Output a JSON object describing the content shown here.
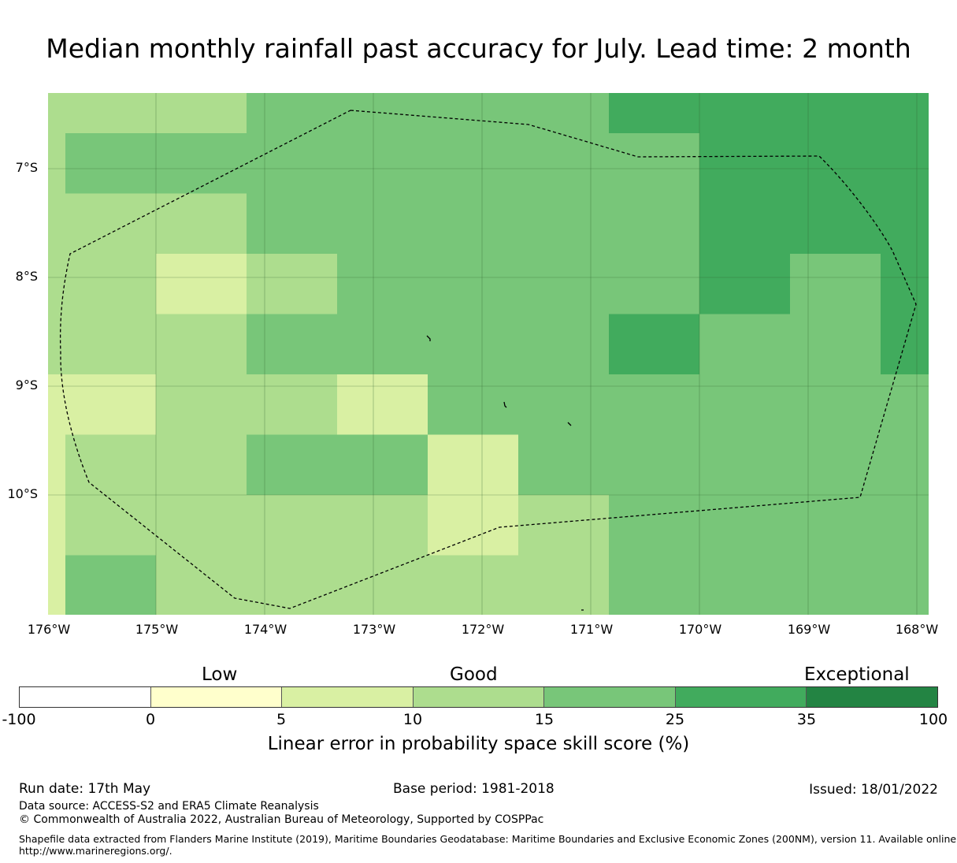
{
  "title": "Median monthly rainfall past accuracy for July. Lead time: 2 month",
  "map": {
    "lat_labels": [
      "7°S",
      "8°S",
      "9°S",
      "10°S"
    ],
    "lon_labels": [
      "176°W",
      "175°W",
      "174°W",
      "173°W",
      "172°W",
      "171°W",
      "170°W",
      "169°W",
      "168°W"
    ],
    "categories": [
      "0",
      "5",
      "10",
      "15",
      "25",
      "35"
    ],
    "colors": [
      "#ffffcc",
      "#d9f0a3",
      "#addd8e",
      "#78c679",
      "#41ab5d",
      "#238443"
    ],
    "cells": [
      [
        "10",
        "10",
        "15",
        "15",
        "15",
        "15",
        "25",
        "25",
        "25",
        "25"
      ],
      [
        "10",
        "15",
        "15",
        "15",
        "15",
        "15",
        "15",
        "25",
        "25",
        "25"
      ],
      [
        "10",
        "15",
        "15",
        "15",
        "15",
        "15",
        "15",
        "25",
        "25",
        "25"
      ],
      [
        "10",
        "10",
        "15",
        "15",
        "15",
        "15",
        "15",
        "25",
        "25",
        "25"
      ],
      [
        "10",
        "10",
        "15",
        "15",
        "15",
        "15",
        "15",
        "25",
        "25",
        "25"
      ],
      [
        "10",
        "10",
        "10",
        "15",
        "15",
        "15",
        "15",
        "25",
        "25",
        "25"
      ],
      [
        "10",
        "10",
        "10",
        "15",
        "15",
        "15",
        "15",
        "25",
        "25",
        "25"
      ],
      [
        "10",
        "10",
        "5",
        "10",
        "15",
        "15",
        "15",
        "25",
        "25",
        "15"
      ],
      [
        "10",
        "10",
        "5",
        "10",
        "15",
        "15",
        "15",
        "25",
        "25",
        "15"
      ],
      [
        "10",
        "10",
        "15",
        "15",
        "15",
        "15",
        "25",
        "15",
        "15",
        "25"
      ],
      [
        "10",
        "10",
        "15",
        "15",
        "15",
        "15",
        "25",
        "15",
        "15",
        "25"
      ],
      [
        "5",
        "5",
        "10",
        "10",
        "5",
        "15",
        "15",
        "15",
        "15",
        "15"
      ],
      [
        "5",
        "5",
        "10",
        "10",
        "5",
        "15",
        "15",
        "15",
        "15",
        "15"
      ],
      [
        "5",
        "10",
        "10",
        "15",
        "15",
        "5",
        "15",
        "15",
        "15",
        "15"
      ],
      [
        "5",
        "10",
        "10",
        "15",
        "15",
        "5",
        "15",
        "15",
        "15",
        "15"
      ],
      [
        "5",
        "10",
        "10",
        "10",
        "10",
        "5",
        "10",
        "15",
        "15",
        "15"
      ],
      [
        "5",
        "10",
        "10",
        "10",
        "10",
        "5",
        "10",
        "15",
        "15",
        "15"
      ],
      [
        "5",
        "15",
        "10",
        "10",
        "10",
        "10",
        "10",
        "15",
        "15",
        "15"
      ],
      [
        "5",
        "15",
        "10",
        "10",
        "10",
        "10",
        "10",
        "15",
        "15",
        "15"
      ]
    ]
  },
  "colorbar": {
    "category_labels": {
      "low": "Low",
      "good": "Good",
      "exceptional": "Exceptional"
    },
    "ticks": [
      "-100",
      "0",
      "5",
      "10",
      "15",
      "25",
      "35",
      "100"
    ],
    "colors": [
      "#ffffff",
      "#ffffcc",
      "#d9f0a3",
      "#addd8e",
      "#78c679",
      "#41ab5d",
      "#238443"
    ],
    "label": "Linear error in probability space skill score (%)"
  },
  "footer": {
    "run_date": "Run date: 17th May",
    "base_period": "Base period: 1981-2018",
    "issued": "Issued: 18/01/2022",
    "data_source": "Data source: ACCESS-S2 and ERA5 Climate Reanalysis",
    "copyright": "© Commonwealth of Australia 2022, Australian Bureau of Meteorology, Supported by COSPPac",
    "shapefile_line1": "Shapefile data extracted from Flanders Marine Institute (2019), Maritime Boundaries Geodatabase: Maritime Boundaries and Exclusive Economic Zones (200NM), version 11. Available online at",
    "shapefile_line2": "http://www.marineregions.org/."
  }
}
